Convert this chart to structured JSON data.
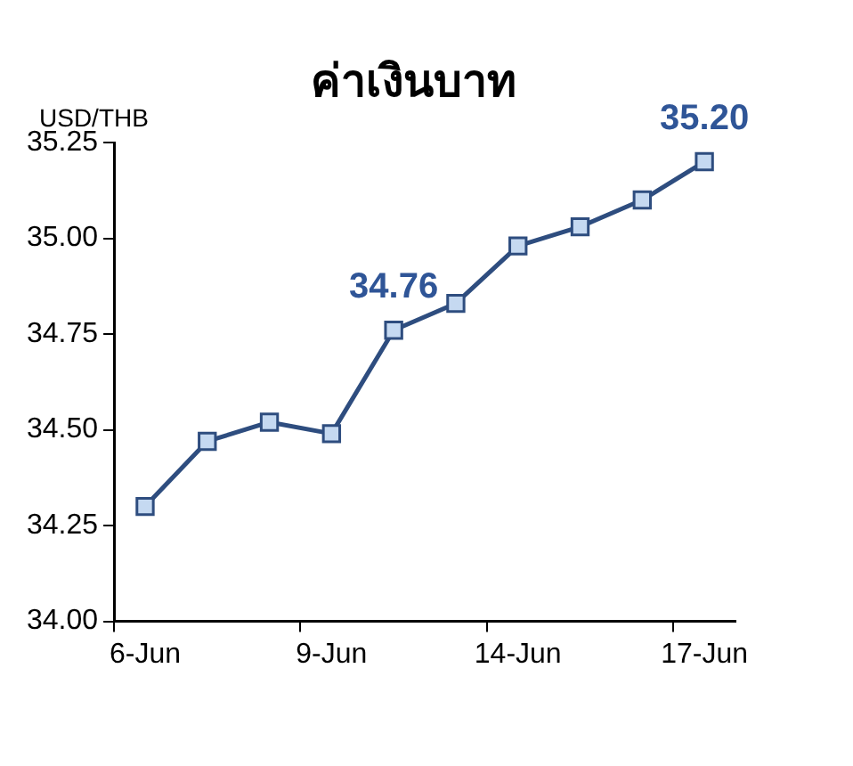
{
  "chart_data": {
    "type": "line",
    "title": "ค่าเงินบาท",
    "ylabel": "USD/THB",
    "categories": [
      "6-Jun",
      null,
      null,
      "9-Jun",
      null,
      null,
      "14-Jun",
      null,
      null,
      "17-Jun"
    ],
    "series": [
      {
        "color": "#2e4d7f",
        "values": [
          34.3,
          34.47,
          34.52,
          34.49,
          34.76,
          34.83,
          34.98,
          35.03,
          35.1,
          35.2
        ],
        "value_labels": [
          null,
          null,
          null,
          null,
          "34.76",
          null,
          null,
          null,
          null,
          "35.20"
        ]
      }
    ],
    "ylim": [
      34,
      35.25
    ],
    "yticks": [
      {
        "value": 34,
        "label": "34.00"
      },
      {
        "value": 34.25,
        "label": "34.25"
      },
      {
        "value": 34.5,
        "label": "34.50"
      },
      {
        "value": 34.75,
        "label": "34.75"
      },
      {
        "value": 35,
        "label": "35.00"
      },
      {
        "value": 35.25,
        "label": "35.25"
      }
    ],
    "marker": "square",
    "grid": false,
    "legend": false
  }
}
